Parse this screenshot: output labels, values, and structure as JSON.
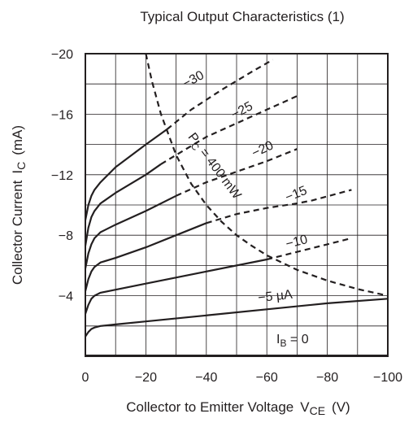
{
  "chart_data": {
    "type": "line",
    "title": "Typical Output Characteristics (1)",
    "xlabel": "Collector to Emitter Voltage",
    "xlabel_symbol": "V",
    "xlabel_subscript": "CE",
    "xlabel_unit": "(V)",
    "ylabel": "Collector Current",
    "ylabel_symbol": "I",
    "ylabel_subscript": "C",
    "ylabel_unit": "(mA)",
    "xlim": [
      0,
      -100
    ],
    "ylim": [
      0,
      -20
    ],
    "x_tick_labels": [
      "0",
      "−20",
      "−40",
      "−60",
      "−80",
      "−100"
    ],
    "x_ticks": [
      0,
      -20,
      -40,
      -60,
      -80,
      -100
    ],
    "y_tick_labels": [
      "−4",
      "−8",
      "−12",
      "−16",
      "−20"
    ],
    "y_ticks": [
      -4,
      -8,
      -12,
      -16,
      -20
    ],
    "grid": true,
    "series": [
      {
        "name": "−5 µA",
        "style": "solid",
        "x": [
          0,
          -1,
          -2,
          -3,
          -5,
          -10,
          -20,
          -40,
          -60,
          -80,
          -100
        ],
        "y": [
          -1.3,
          -1.6,
          -1.8,
          -1.9,
          -2.0,
          -2.1,
          -2.3,
          -2.7,
          -3.1,
          -3.5,
          -3.8
        ]
      },
      {
        "name": "−10",
        "style": "solid",
        "x": [
          0,
          -1,
          -2,
          -3,
          -5,
          -10,
          -20,
          -40,
          -60
        ],
        "y": [
          -2.8,
          -3.4,
          -3.8,
          -4.0,
          -4.2,
          -4.4,
          -4.8,
          -5.6,
          -6.4
        ]
      },
      {
        "name": "−10",
        "style": "dashed",
        "x": [
          -60,
          -70,
          -80,
          -88
        ],
        "y": [
          -6.4,
          -6.9,
          -7.4,
          -7.8
        ]
      },
      {
        "name": "−15",
        "style": "solid",
        "x": [
          0,
          -1,
          -2,
          -3,
          -5,
          -10,
          -20,
          -30,
          -40
        ],
        "y": [
          -4.3,
          -5.1,
          -5.6,
          -5.9,
          -6.2,
          -6.5,
          -7.2,
          -8.0,
          -8.8
        ]
      },
      {
        "name": "−15",
        "style": "dashed",
        "x": [
          -40,
          -50,
          -60,
          -70,
          -75,
          -88
        ],
        "y": [
          -8.8,
          -9.4,
          -9.8,
          -10.1,
          -10.3,
          -11.0
        ]
      },
      {
        "name": "−20",
        "style": "solid",
        "x": [
          0,
          -1,
          -2,
          -3,
          -5,
          -10,
          -20,
          -30
        ],
        "y": [
          -5.8,
          -6.8,
          -7.4,
          -7.8,
          -8.2,
          -8.7,
          -9.6,
          -10.6
        ]
      },
      {
        "name": "−20",
        "style": "dashed",
        "x": [
          -30,
          -40,
          -50,
          -60,
          -70
        ],
        "y": [
          -10.6,
          -11.5,
          -12.2,
          -12.9,
          -13.7
        ]
      },
      {
        "name": "−25",
        "style": "solid",
        "x": [
          0,
          -1,
          -2,
          -3,
          -5,
          -10,
          -20,
          -25
        ],
        "y": [
          -7.3,
          -8.5,
          -9.2,
          -9.6,
          -10.1,
          -10.8,
          -12.0,
          -12.7
        ]
      },
      {
        "name": "−25",
        "style": "dashed",
        "x": [
          -25,
          -30,
          -40,
          -50,
          -60,
          -70
        ],
        "y": [
          -12.7,
          -13.3,
          -14.5,
          -15.4,
          -16.3,
          -17.2
        ]
      },
      {
        "name": "−30",
        "style": "solid",
        "x": [
          0,
          -1,
          -2,
          -3,
          -5,
          -10,
          -20,
          -27
        ],
        "y": [
          -9.0,
          -10.0,
          -10.6,
          -11.0,
          -11.5,
          -12.5,
          -14.0,
          -15.0
        ]
      },
      {
        "name": "−30",
        "style": "dashed",
        "x": [
          -27,
          -35,
          -45,
          -55,
          -62
        ],
        "y": [
          -15.0,
          -16.3,
          -17.6,
          -18.8,
          -19.6
        ]
      },
      {
        "name": "I_B = 0",
        "style": "solid",
        "x": [
          0,
          -100
        ],
        "y": [
          -0.05,
          -0.05
        ]
      },
      {
        "name": "Pc = 400 mW",
        "style": "dashed",
        "x": [
          -20,
          -22,
          -25,
          -30,
          -35,
          -40,
          -45,
          -50,
          -55,
          -60,
          -70,
          -80,
          -90,
          -100
        ],
        "y": [
          -20,
          -18.2,
          -16,
          -13.3,
          -11.4,
          -10,
          -8.9,
          -8,
          -7.3,
          -6.67,
          -5.71,
          -5,
          -4.44,
          -4
        ]
      }
    ],
    "annotations": {
      "ib_zero": {
        "prefix": "I",
        "sub": "B",
        "suffix": " = 0"
      },
      "pc_label": {
        "prefix": "P",
        "sub": "C",
        "suffix": " = 400 mW"
      }
    }
  }
}
